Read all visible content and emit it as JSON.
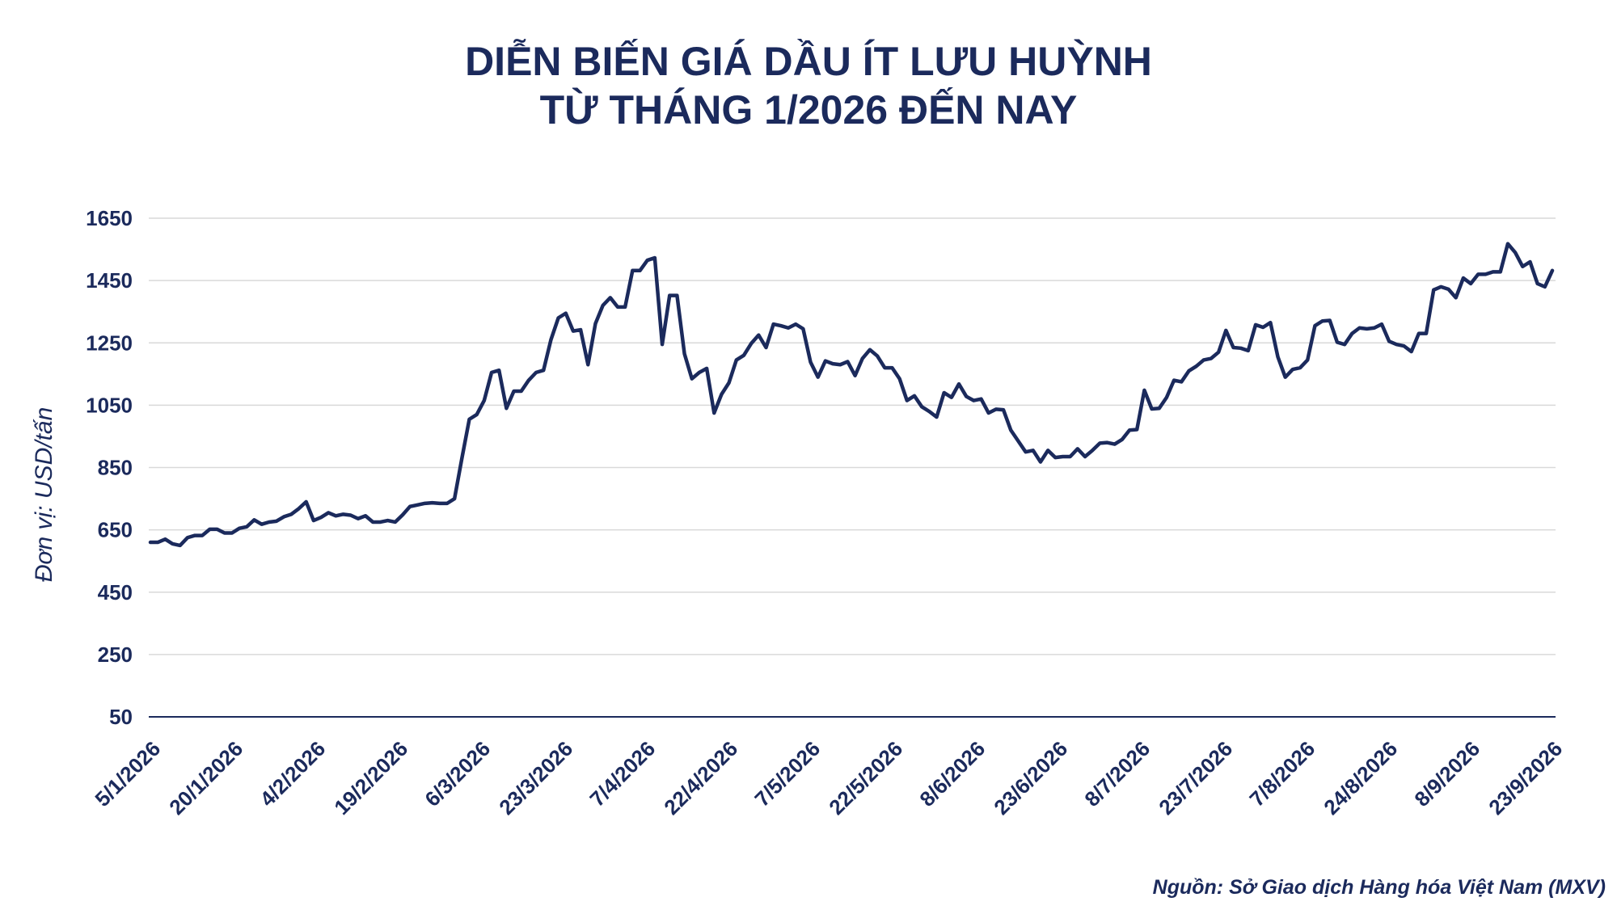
{
  "chart_data": {
    "type": "line",
    "title_lines": [
      "DIỄN BIẾN GIÁ DẦU ÍT LƯU HUỲNH",
      "TỪ THÁNG 1/2026 ĐẾN NAY"
    ],
    "ylabel": "Đơn vị: USD/tấn",
    "source": "Nguồn: Sở Giao dịch Hàng hóa Việt Nam (MXV)",
    "ylim": [
      50,
      1650
    ],
    "yticks": [
      50,
      250,
      450,
      650,
      850,
      1050,
      1250,
      1450,
      1650
    ],
    "grid": true,
    "xtick_labels": [
      "5/1/2026",
      "20/1/2026",
      "4/2/2026",
      "19/2/2026",
      "6/3/2026",
      "23/3/2026",
      "7/4/2026",
      "22/4/2026",
      "7/5/2026",
      "22/5/2026",
      "8/6/2026",
      "23/6/2026",
      "8/7/2026",
      "23/7/2026",
      "7/8/2026",
      "24/8/2026",
      "8/9/2026",
      "23/9/2026"
    ],
    "values": [
      610,
      610,
      620,
      605,
      600,
      625,
      632,
      632,
      652,
      652,
      640,
      640,
      655,
      660,
      682,
      668,
      675,
      678,
      692,
      700,
      718,
      740,
      680,
      690,
      705,
      695,
      700,
      697,
      686,
      695,
      675,
      675,
      680,
      675,
      698,
      725,
      730,
      735,
      737,
      735,
      735,
      750,
      880,
      1005,
      1020,
      1065,
      1155,
      1162,
      1040,
      1095,
      1095,
      1130,
      1155,
      1162,
      1260,
      1330,
      1345,
      1288,
      1292,
      1180,
      1312,
      1370,
      1395,
      1365,
      1365,
      1482,
      1482,
      1515,
      1523,
      1245,
      1402,
      1402,
      1215,
      1135,
      1155,
      1168,
      1025,
      1085,
      1122,
      1195,
      1210,
      1248,
      1275,
      1235,
      1310,
      1305,
      1298,
      1310,
      1295,
      1188,
      1140,
      1192,
      1183,
      1180,
      1190,
      1145,
      1200,
      1228,
      1208,
      1170,
      1170,
      1135,
      1065,
      1080,
      1045,
      1030,
      1012,
      1090,
      1075,
      1118,
      1078,
      1065,
      1070,
      1025,
      1037,
      1035,
      970,
      935,
      900,
      905,
      868,
      905,
      882,
      885,
      885,
      910,
      885,
      905,
      928,
      930,
      925,
      940,
      970,
      972,
      1098,
      1038,
      1040,
      1075,
      1130,
      1125,
      1160,
      1175,
      1195,
      1200,
      1220,
      1290,
      1235,
      1233,
      1225,
      1308,
      1300,
      1315,
      1205,
      1140,
      1165,
      1170,
      1195,
      1305,
      1320,
      1322,
      1252,
      1245,
      1280,
      1298,
      1295,
      1298,
      1310,
      1255,
      1245,
      1240,
      1222,
      1280,
      1280,
      1420,
      1430,
      1422,
      1395,
      1458,
      1440,
      1470,
      1470,
      1478,
      1478,
      1568,
      1540,
      1495,
      1510,
      1440,
      1430,
      1482
    ]
  }
}
